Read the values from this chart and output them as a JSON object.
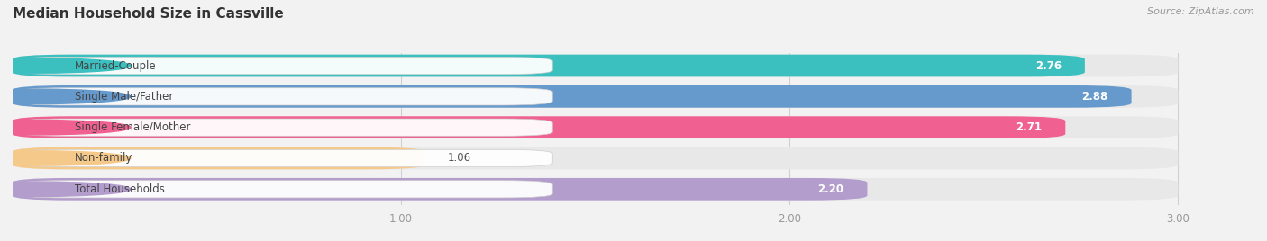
{
  "title": "Median Household Size in Cassville",
  "source": "Source: ZipAtlas.com",
  "categories": [
    "Married-Couple",
    "Single Male/Father",
    "Single Female/Mother",
    "Non-family",
    "Total Households"
  ],
  "values": [
    2.76,
    2.88,
    2.71,
    1.06,
    2.2
  ],
  "bar_colors": [
    "#3bbfbf",
    "#6699cc",
    "#f06090",
    "#f5c98a",
    "#b39dcc"
  ],
  "xlim_min": 0.0,
  "xlim_max": 3.18,
  "data_min": 0.0,
  "data_max": 3.0,
  "xticks": [
    1.0,
    2.0,
    3.0
  ],
  "background_color": "#f2f2f2",
  "bar_bg_color": "#e0e0e0",
  "bar_bg_color2": "#ebebeb",
  "title_fontsize": 11,
  "value_fontsize": 8.5,
  "label_fontsize": 8.5,
  "source_fontsize": 8
}
